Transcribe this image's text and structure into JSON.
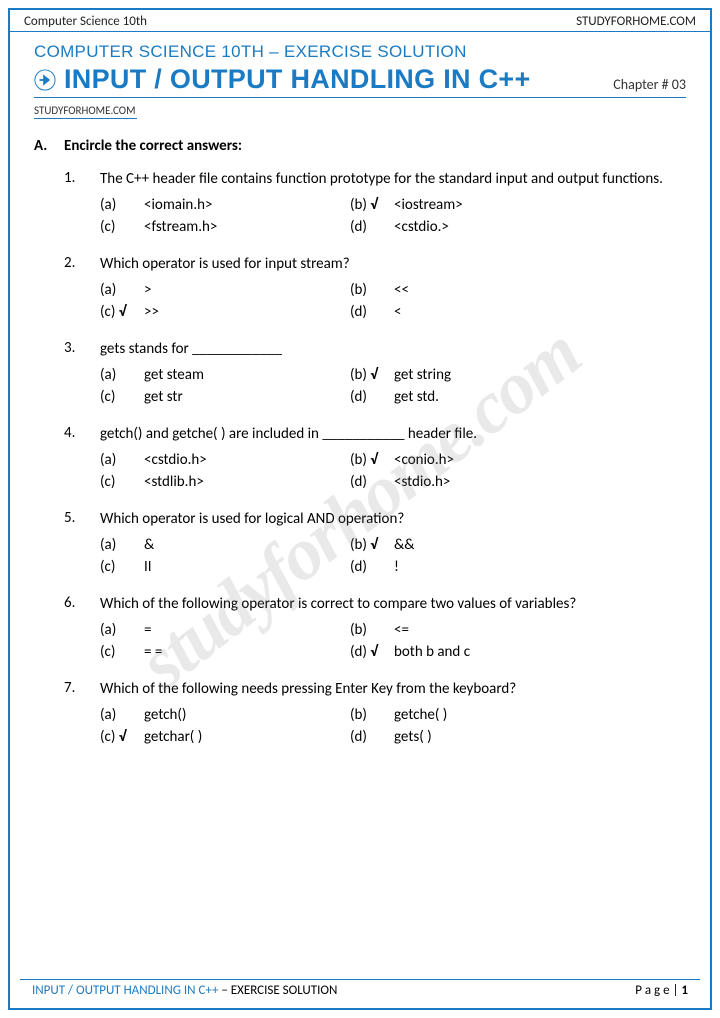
{
  "header": {
    "left": "Computer Science 10th",
    "right": "STUDYFORHOME.COM"
  },
  "course_line": "COMPUTER SCIENCE 10TH – EXERCISE SOLUTION",
  "title": "INPUT / OUTPUT HANDLING IN C++",
  "chapter": "Chapter # 03",
  "site_under": "STUDYFORHOME.COM",
  "watermark": "studyforhome.com",
  "section": {
    "letter": "A.",
    "title": "Encircle the correct answers:"
  },
  "questions": [
    {
      "num": "1.",
      "text": "The C++ header file contains function prototype for the standard input and output functions.",
      "opts": [
        {
          "label": "(a)",
          "text": "<iomain.h>",
          "correct": false
        },
        {
          "label": "(b)",
          "text": "<iostream>",
          "correct": true
        },
        {
          "label": "(c)",
          "text": "<fstream.h>",
          "correct": false
        },
        {
          "label": "(d)",
          "text": "<cstdio.>",
          "correct": false
        }
      ]
    },
    {
      "num": "2.",
      "text": "Which operator is used for input stream?",
      "opts": [
        {
          "label": "(a)",
          "text": ">",
          "correct": false
        },
        {
          "label": "(b)",
          "text": "<<",
          "correct": false
        },
        {
          "label": "(c)",
          "text": ">>",
          "correct": true
        },
        {
          "label": "(d)",
          "text": "<",
          "correct": false
        }
      ]
    },
    {
      "num": "3.",
      "text": "gets stands for ____________",
      "opts": [
        {
          "label": "(a)",
          "text": "get steam",
          "correct": false
        },
        {
          "label": "(b)",
          "text": "get string",
          "correct": true
        },
        {
          "label": "(c)",
          "text": "get str",
          "correct": false
        },
        {
          "label": "(d)",
          "text": "get std.",
          "correct": false
        }
      ]
    },
    {
      "num": "4.",
      "text": "getch() and getche( ) are included in ___________ header file.",
      "opts": [
        {
          "label": "(a)",
          "text": "<cstdio.h>",
          "correct": false
        },
        {
          "label": "(b)",
          "text": "<conio.h>",
          "correct": true
        },
        {
          "label": "(c)",
          "text": "<stdlib.h>",
          "correct": false
        },
        {
          "label": "(d)",
          "text": "<stdio.h>",
          "correct": false
        }
      ]
    },
    {
      "num": "5.",
      "text": "Which operator is used for logical AND operation?",
      "opts": [
        {
          "label": "(a)",
          "text": "&",
          "correct": false
        },
        {
          "label": "(b)",
          "text": "&&",
          "correct": true
        },
        {
          "label": "(c)",
          "text": "II",
          "correct": false
        },
        {
          "label": "(d)",
          "text": "!",
          "correct": false
        }
      ]
    },
    {
      "num": "6.",
      "text": "Which of the following operator is correct to compare two values of variables?",
      "opts": [
        {
          "label": "(a)",
          "text": "=",
          "correct": false
        },
        {
          "label": "(b)",
          "text": "<=",
          "correct": false
        },
        {
          "label": "(c)",
          "text": "= =",
          "correct": false
        },
        {
          "label": "(d)",
          "text": "both b and c",
          "correct": true
        }
      ]
    },
    {
      "num": "7.",
      "text": "Which of the following needs pressing Enter Key from the keyboard?",
      "opts": [
        {
          "label": "(a)",
          "text": "getch()",
          "correct": false
        },
        {
          "label": "(b)",
          "text": "getche( )",
          "correct": false
        },
        {
          "label": "(c)",
          "text": "getchar( )",
          "correct": true
        },
        {
          "label": "(d)",
          "text": "gets( )",
          "correct": false
        }
      ]
    }
  ],
  "footer": {
    "title": "INPUT / OUTPUT HANDLING IN C++",
    "subtitle": " – EXERCISE SOLUTION",
    "page_label": "P a g e  | ",
    "page_num": "1"
  },
  "colors": {
    "accent": "#1a7bc4"
  }
}
